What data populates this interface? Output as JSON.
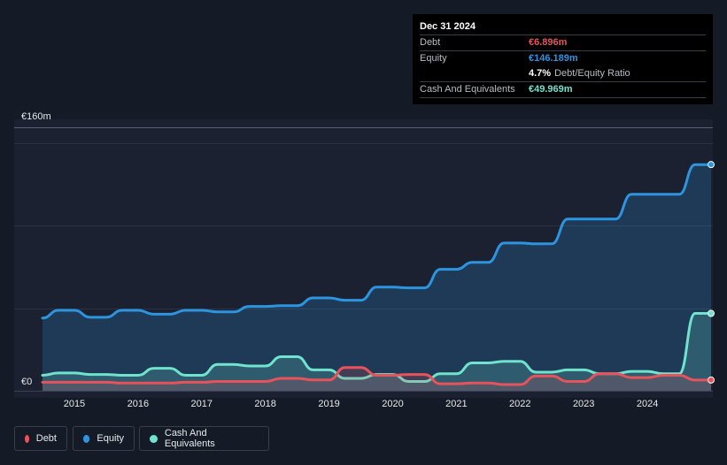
{
  "tooltip": {
    "date": "Dec 31 2024",
    "debt_label": "Debt",
    "debt_value": "€6.896m",
    "equity_label": "Equity",
    "equity_value": "€146.189m",
    "ratio_value": "4.7%",
    "ratio_label": "Debt/Equity Ratio",
    "cash_label": "Cash And Equivalents",
    "cash_value": "€49.969m"
  },
  "legend": {
    "debt": "Debt",
    "equity": "Equity",
    "cash": "Cash And Equivalents"
  },
  "colors": {
    "debt": "#e8535b",
    "equity": "#2d94e0",
    "cash": "#6fe3cd",
    "background": "#151b26"
  },
  "chart_data": {
    "type": "line",
    "title": "",
    "xlabel": "",
    "ylabel": "",
    "ylim": [
      0,
      160
    ],
    "y_tick_labels": {
      "top": "€160m",
      "bottom": "€0"
    },
    "x_ticks": [
      {
        "label": "2015",
        "value": 2015.0
      },
      {
        "label": "2016",
        "value": 2016.0
      },
      {
        "label": "2017",
        "value": 2017.0
      },
      {
        "label": "2018",
        "value": 2018.0
      },
      {
        "label": "2019",
        "value": 2019.0
      },
      {
        "label": "2020",
        "value": 2020.0
      },
      {
        "label": "2021",
        "value": 2021.0
      },
      {
        "label": "2022",
        "value": 2022.0
      },
      {
        "label": "2023",
        "value": 2023.0
      },
      {
        "label": "2024",
        "value": 2024.0
      }
    ],
    "xlim": [
      2014.5,
      2025.0
    ],
    "series": [
      {
        "name": "Equity",
        "key": "equity",
        "points": [
          [
            2014.5,
            47
          ],
          [
            2014.75,
            52
          ],
          [
            2015.0,
            52
          ],
          [
            2015.25,
            47.5
          ],
          [
            2015.5,
            47.5
          ],
          [
            2015.75,
            52
          ],
          [
            2016.0,
            52
          ],
          [
            2016.25,
            49.5
          ],
          [
            2016.5,
            49.5
          ],
          [
            2016.75,
            52
          ],
          [
            2017.0,
            52
          ],
          [
            2017.25,
            51
          ],
          [
            2017.5,
            51
          ],
          [
            2017.75,
            54.5
          ],
          [
            2018.0,
            54.5
          ],
          [
            2018.25,
            55
          ],
          [
            2018.5,
            55
          ],
          [
            2018.75,
            60
          ],
          [
            2019.0,
            60
          ],
          [
            2019.25,
            58.5
          ],
          [
            2019.5,
            58.5
          ],
          [
            2019.75,
            67
          ],
          [
            2020.0,
            67
          ],
          [
            2020.25,
            66.5
          ],
          [
            2020.5,
            66.5
          ],
          [
            2020.75,
            78.5
          ],
          [
            2021.0,
            78.5
          ],
          [
            2021.25,
            83
          ],
          [
            2021.5,
            83
          ],
          [
            2021.75,
            95.5
          ],
          [
            2022.0,
            95.5
          ],
          [
            2022.25,
            95
          ],
          [
            2022.5,
            95
          ],
          [
            2022.75,
            111
          ],
          [
            2023.0,
            111
          ],
          [
            2023.25,
            111
          ],
          [
            2023.5,
            111
          ],
          [
            2023.75,
            127
          ],
          [
            2024.0,
            127
          ],
          [
            2024.25,
            127
          ],
          [
            2024.5,
            127
          ],
          [
            2024.75,
            146.2
          ],
          [
            2025.0,
            146.2
          ]
        ]
      },
      {
        "name": "Cash And Equivalents",
        "key": "cash",
        "points": [
          [
            2014.5,
            10
          ],
          [
            2014.75,
            11.5
          ],
          [
            2015.0,
            11.5
          ],
          [
            2015.25,
            10.5
          ],
          [
            2015.5,
            10.5
          ],
          [
            2015.75,
            10
          ],
          [
            2016.0,
            10
          ],
          [
            2016.25,
            14.5
          ],
          [
            2016.5,
            14.5
          ],
          [
            2016.75,
            10
          ],
          [
            2017.0,
            10
          ],
          [
            2017.25,
            17
          ],
          [
            2017.5,
            17
          ],
          [
            2017.75,
            16
          ],
          [
            2018.0,
            16
          ],
          [
            2018.25,
            22
          ],
          [
            2018.5,
            22
          ],
          [
            2018.75,
            13.5
          ],
          [
            2019.0,
            13.5
          ],
          [
            2019.25,
            8
          ],
          [
            2019.5,
            8
          ],
          [
            2019.75,
            10.5
          ],
          [
            2020.0,
            10.5
          ],
          [
            2020.25,
            6
          ],
          [
            2020.5,
            6
          ],
          [
            2020.75,
            11
          ],
          [
            2021.0,
            11
          ],
          [
            2021.25,
            18
          ],
          [
            2021.5,
            18
          ],
          [
            2021.75,
            19
          ],
          [
            2022.0,
            19
          ],
          [
            2022.25,
            12
          ],
          [
            2022.5,
            12
          ],
          [
            2022.75,
            13.5
          ],
          [
            2023.0,
            13.5
          ],
          [
            2023.25,
            11
          ],
          [
            2023.5,
            11
          ],
          [
            2023.75,
            12.5
          ],
          [
            2024.0,
            12.5
          ],
          [
            2024.25,
            11
          ],
          [
            2024.5,
            11
          ],
          [
            2024.75,
            50
          ],
          [
            2025.0,
            50
          ]
        ]
      },
      {
        "name": "Debt",
        "key": "debt",
        "points": [
          [
            2014.5,
            5.5
          ],
          [
            2014.75,
            5.5
          ],
          [
            2015.0,
            5.5
          ],
          [
            2015.25,
            5.5
          ],
          [
            2015.5,
            5.5
          ],
          [
            2015.75,
            5
          ],
          [
            2016.0,
            5
          ],
          [
            2016.25,
            5
          ],
          [
            2016.5,
            5
          ],
          [
            2016.75,
            5.5
          ],
          [
            2017.0,
            5.5
          ],
          [
            2017.25,
            6
          ],
          [
            2017.5,
            6
          ],
          [
            2017.75,
            6
          ],
          [
            2018.0,
            6
          ],
          [
            2018.25,
            8
          ],
          [
            2018.5,
            8
          ],
          [
            2018.75,
            7
          ],
          [
            2019.0,
            7
          ],
          [
            2019.25,
            15
          ],
          [
            2019.5,
            15
          ],
          [
            2019.75,
            10
          ],
          [
            2020.0,
            10
          ],
          [
            2020.25,
            10.5
          ],
          [
            2020.5,
            10.5
          ],
          [
            2020.75,
            4.5
          ],
          [
            2021.0,
            4.5
          ],
          [
            2021.25,
            5
          ],
          [
            2021.5,
            5
          ],
          [
            2021.75,
            4
          ],
          [
            2022.0,
            4
          ],
          [
            2022.25,
            9.5
          ],
          [
            2022.5,
            9.5
          ],
          [
            2022.75,
            6
          ],
          [
            2023.0,
            6
          ],
          [
            2023.25,
            11
          ],
          [
            2023.5,
            11
          ],
          [
            2023.75,
            8.5
          ],
          [
            2024.0,
            8.5
          ],
          [
            2024.25,
            10
          ],
          [
            2024.5,
            10
          ],
          [
            2024.75,
            6.9
          ],
          [
            2025.0,
            6.9
          ]
        ]
      }
    ]
  }
}
